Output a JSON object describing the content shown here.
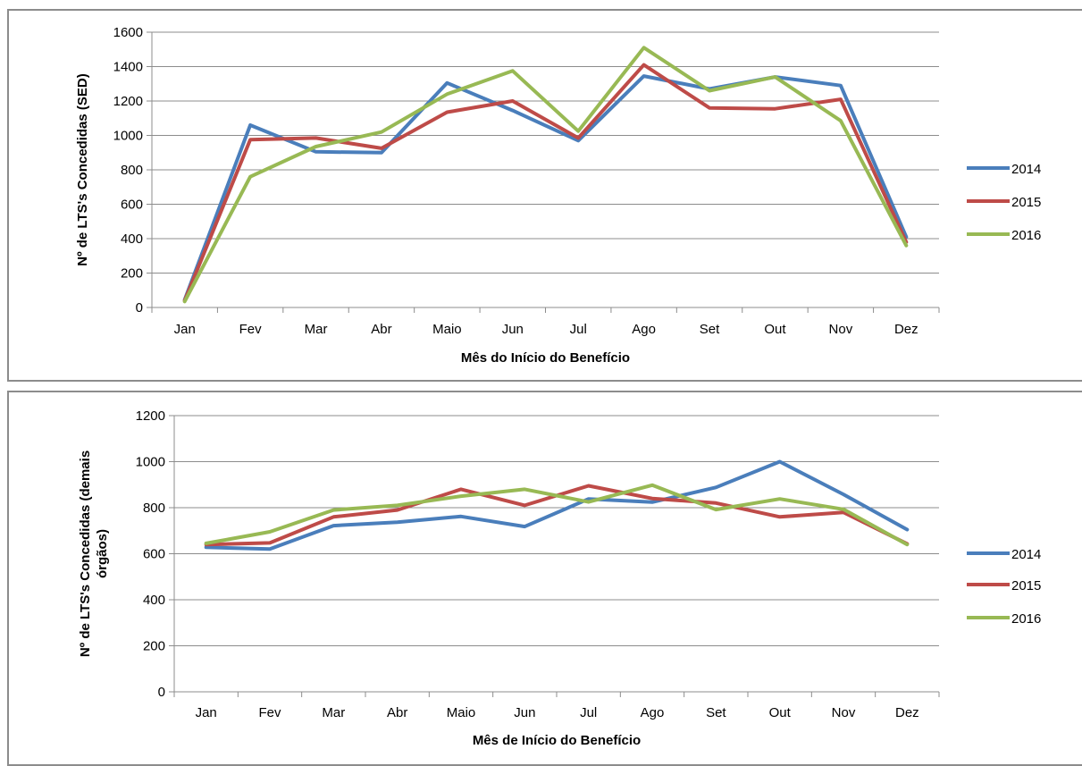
{
  "chart_data": [
    {
      "type": "line",
      "xlabel": "Mês do Início do Benefício",
      "ylabel": "Nº de LTS's Concedidas (SED)",
      "ylim": [
        0,
        1600
      ],
      "yticks": [
        0,
        200,
        400,
        600,
        800,
        1000,
        1200,
        1400,
        1600
      ],
      "grid": true,
      "legend": "right",
      "categories": [
        "Jan",
        "Fev",
        "Mar",
        "Abr",
        "Maio",
        "Jun",
        "Jul",
        "Ago",
        "Set",
        "Out",
        "Nov",
        "Dez"
      ],
      "series": [
        {
          "name": "2014",
          "color": "#4a7ebb",
          "values": [
            45,
            1060,
            905,
            900,
            1305,
            1145,
            970,
            1345,
            1270,
            1340,
            1290,
            410
          ]
        },
        {
          "name": "2015",
          "color": "#be4b48",
          "values": [
            40,
            975,
            985,
            925,
            1135,
            1200,
            985,
            1410,
            1160,
            1155,
            1210,
            380
          ]
        },
        {
          "name": "2016",
          "color": "#98b954",
          "values": [
            35,
            760,
            935,
            1020,
            1240,
            1375,
            1025,
            1510,
            1260,
            1340,
            1085,
            360
          ]
        }
      ]
    },
    {
      "type": "line",
      "xlabel": "Mês de Início do Benefício",
      "ylabel": "Nº de LTS's Concedidas (demais órgãos)",
      "ylabel_lines": [
        "Nº de LTS's Concedidas (demais",
        "órgãos)"
      ],
      "ylim": [
        0,
        1200
      ],
      "yticks": [
        0,
        200,
        400,
        600,
        800,
        1000,
        1200
      ],
      "grid": true,
      "legend": "right",
      "categories": [
        "Jan",
        "Fev",
        "Mar",
        "Abr",
        "Maio",
        "Jun",
        "Jul",
        "Ago",
        "Set",
        "Out",
        "Nov",
        "Dez"
      ],
      "series": [
        {
          "name": "2014",
          "color": "#4a7ebb",
          "values": [
            628,
            620,
            722,
            737,
            762,
            718,
            838,
            824,
            888,
            1000,
            858,
            705
          ]
        },
        {
          "name": "2015",
          "color": "#be4b48",
          "values": [
            640,
            647,
            760,
            790,
            880,
            810,
            895,
            840,
            820,
            760,
            780,
            643
          ]
        },
        {
          "name": "2016",
          "color": "#98b954",
          "values": [
            645,
            695,
            790,
            810,
            850,
            880,
            825,
            898,
            792,
            838,
            793,
            640
          ]
        }
      ]
    }
  ]
}
